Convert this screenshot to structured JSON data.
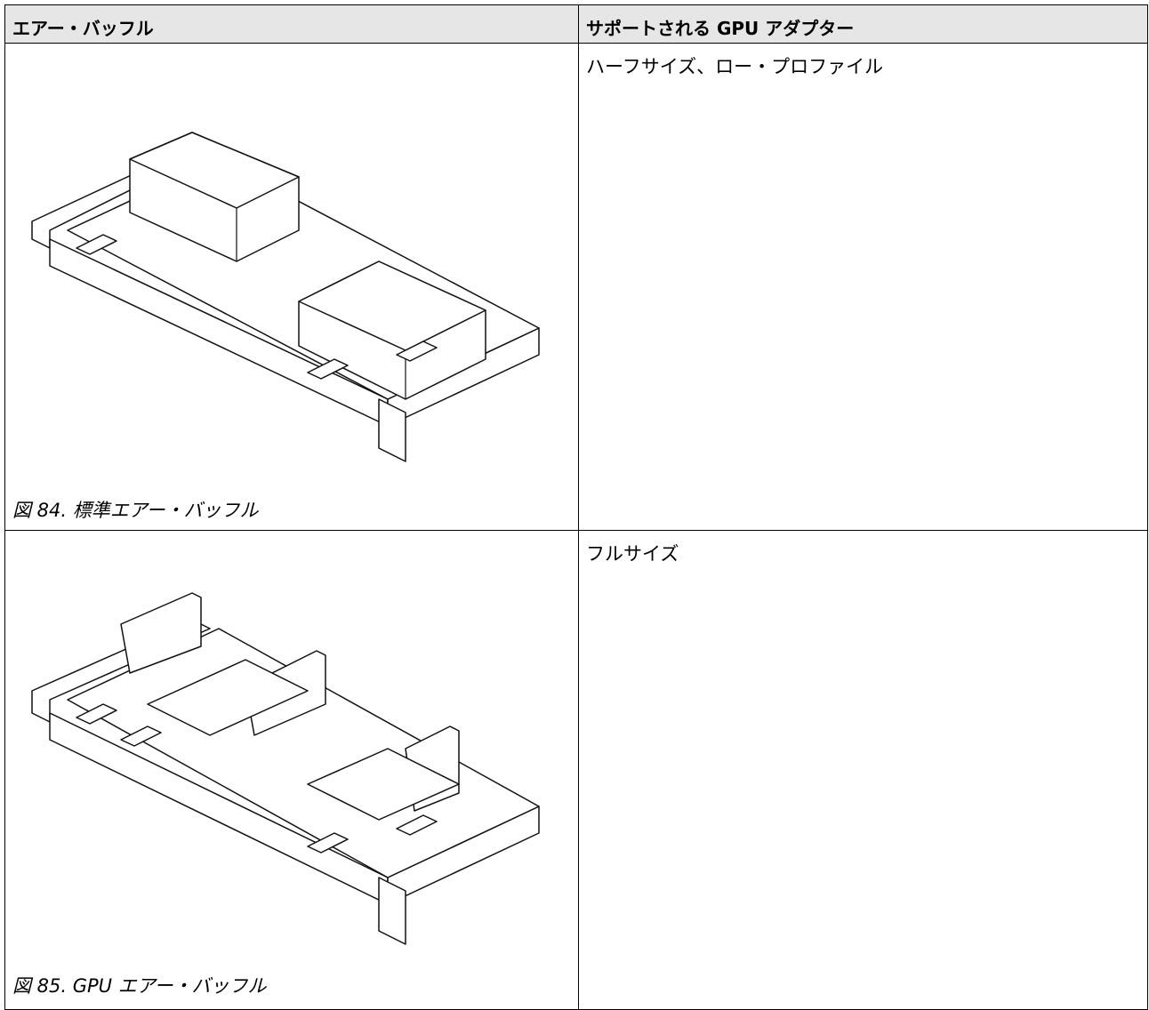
{
  "table": {
    "header": [
      "エアー・バッフル",
      "サポートされる GPU アダプター"
    ],
    "rows": [
      {
        "figure_caption": "図 84. 標準エアー・バッフル",
        "gpu": "ハーフサイズ、ロー・プロファイル"
      },
      {
        "figure_caption": "図 85. GPU エアー・バッフル",
        "gpu": "フルサイズ"
      }
    ]
  }
}
